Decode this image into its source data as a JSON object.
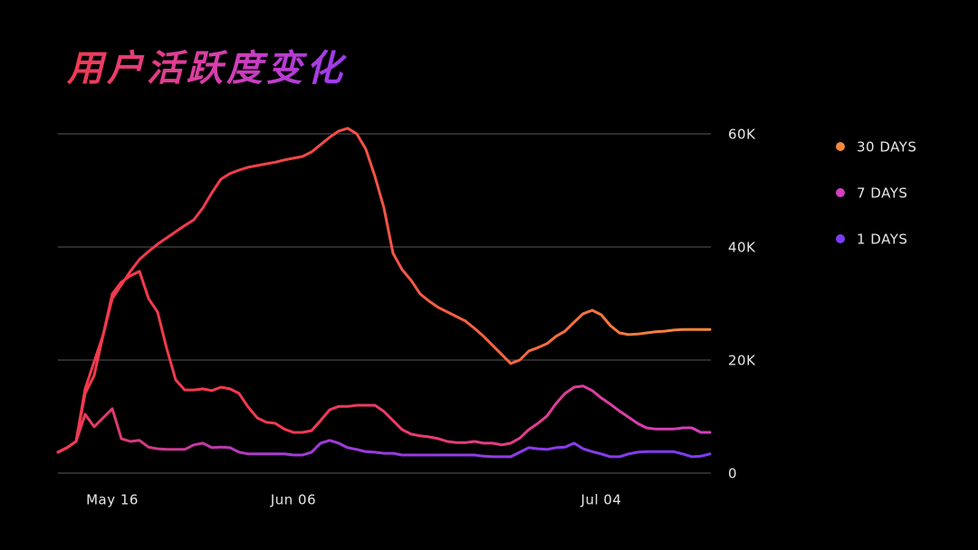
{
  "chart_data": {
    "type": "line",
    "title": "用户活跃度变化",
    "categories": [
      null,
      null,
      null,
      null,
      null,
      null,
      "May 16",
      null,
      null,
      null,
      null,
      null,
      null,
      null,
      null,
      null,
      null,
      null,
      null,
      null,
      null,
      null,
      null,
      null,
      null,
      null,
      "Jun 06",
      null,
      null,
      null,
      null,
      null,
      null,
      null,
      null,
      null,
      null,
      null,
      null,
      null,
      null,
      null,
      null,
      null,
      null,
      null,
      null,
      null,
      null,
      null,
      null,
      null,
      null,
      null,
      null,
      null,
      null,
      null,
      null,
      null,
      "Jul 04",
      null,
      null,
      null,
      null,
      null,
      null,
      null,
      null,
      null,
      null,
      null,
      null
    ],
    "series": [
      {
        "name": "30 DAYS",
        "color": "#f5883a",
        "values": [
          3700,
          4500,
          5600,
          14900,
          19700,
          24500,
          30900,
          33300,
          35700,
          37800,
          39200,
          40500,
          41600,
          42700,
          43800,
          44800,
          46900,
          49600,
          52000,
          53000,
          53600,
          54100,
          54400,
          54700,
          55000,
          55400,
          55700,
          56000,
          56800,
          58100,
          59400,
          60500,
          61000,
          60000,
          57300,
          52500,
          46900,
          38900,
          36000,
          34100,
          31700,
          30400,
          29300,
          28500,
          27700,
          26900,
          25600,
          24200,
          22600,
          21000,
          19400,
          20000,
          21600,
          22200,
          22900,
          24200,
          25100,
          26700,
          28200,
          28800,
          28000,
          26100,
          24800,
          24500,
          24600,
          24800,
          25000,
          25100,
          25300,
          25400,
          25400,
          25400,
          25400
        ]
      },
      {
        "name": "7 DAYS",
        "color": "#d43fc0",
        "values": [
          3700,
          4500,
          5600,
          14100,
          17300,
          24500,
          31700,
          33800,
          34900,
          35700,
          30900,
          28500,
          22100,
          16500,
          14700,
          14700,
          14900,
          14600,
          15200,
          14900,
          14100,
          11700,
          9800,
          9000,
          8800,
          7800,
          7200,
          7200,
          7500,
          9300,
          11200,
          11800,
          11800,
          12000,
          12000,
          12000,
          10900,
          9300,
          7700,
          6900,
          6600,
          6400,
          6100,
          5600,
          5400,
          5400,
          5600,
          5300,
          5300,
          5000,
          5300,
          6200,
          7700,
          8800,
          10100,
          12300,
          14100,
          15200,
          15400,
          14600,
          13300,
          12200,
          11000,
          9900,
          8800,
          8000,
          7800,
          7800,
          7800,
          8000,
          8000,
          7200,
          7200
        ]
      },
      {
        "name": "1 DAYS",
        "color": "#7b3cf5",
        "values": [
          3700,
          4500,
          5600,
          10400,
          8200,
          9800,
          11400,
          6100,
          5600,
          5800,
          4600,
          4300,
          4200,
          4200,
          4200,
          5000,
          5300,
          4500,
          4600,
          4500,
          3700,
          3400,
          3400,
          3400,
          3400,
          3400,
          3200,
          3200,
          3700,
          5300,
          5800,
          5300,
          4500,
          4200,
          3800,
          3700,
          3500,
          3500,
          3200,
          3200,
          3200,
          3200,
          3200,
          3200,
          3200,
          3200,
          3200,
          3000,
          2900,
          2900,
          2900,
          3700,
          4500,
          4300,
          4200,
          4500,
          4600,
          5300,
          4300,
          3800,
          3400,
          2900,
          2900,
          3400,
          3700,
          3800,
          3800,
          3800,
          3800,
          3400,
          2900,
          3000,
          3400
        ]
      }
    ],
    "ylim": [
      0,
      64000
    ],
    "yticks": [
      0,
      {
        "value": 20000,
        "label": "20K"
      },
      {
        "value": 40000,
        "label": "40K"
      },
      {
        "value": 60000,
        "label": "60K"
      }
    ],
    "grid": true,
    "legend": "right"
  }
}
